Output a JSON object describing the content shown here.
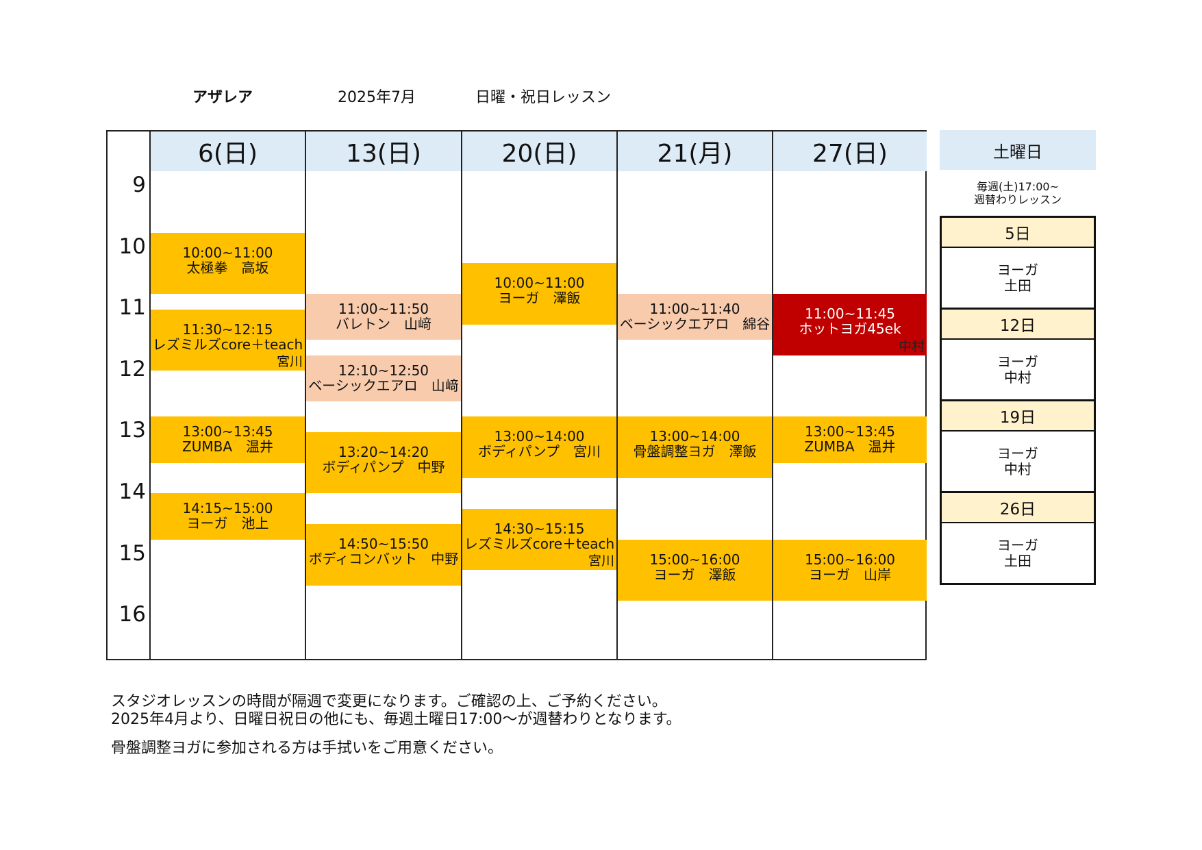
{
  "header": {
    "studio": "アザレア",
    "month": "2025年7月",
    "subtitle": "日曜・祝日レッスン"
  },
  "colors": {
    "regular": "#FFC000",
    "beginner": "#F8CBAD",
    "hot": "#C00000",
    "header_fill": "#DDEBF7",
    "saturday_date_fill": "#FFF2CC"
  },
  "hours": [
    "9",
    "10",
    "11",
    "12",
    "13",
    "14",
    "15",
    "16"
  ],
  "days": [
    {
      "label": "6(日)",
      "events": [
        {
          "time": "10:00~11:00",
          "name": "太極拳　高坂",
          "color": "regular"
        },
        {
          "time": "11:30~12:15",
          "name": "レズミルズcore＋teach",
          "instructor": "宮川",
          "color": "regular"
        },
        {
          "time": "13:00~13:45",
          "name": "ZUMBA　温井",
          "color": "regular"
        },
        {
          "time": "14:15~15:00",
          "name": "ヨーガ　池上",
          "color": "regular"
        }
      ]
    },
    {
      "label": "13(日)",
      "events": [
        {
          "time": "11:00~11:50",
          "name": "バレトン　山﨑",
          "color": "beginner"
        },
        {
          "time": "12:10~12:50",
          "name": "ベーシックエアロ　山﨑",
          "color": "beginner"
        },
        {
          "time": "13:20~14:20",
          "name": "ボディパンプ　中野",
          "color": "regular"
        },
        {
          "time": "14:50~15:50",
          "name": "ボディコンバット　中野",
          "color": "regular"
        }
      ]
    },
    {
      "label": "20(日)",
      "events": [
        {
          "time": "10:00~11:00",
          "name": "ヨーガ　澤飯",
          "color": "regular"
        },
        {
          "time": "13:00~14:00",
          "name": "ボディパンプ　宮川",
          "color": "regular"
        },
        {
          "time": "14:30~15:15",
          "name": "レズミルズcore＋teach",
          "instructor": "宮川",
          "color": "regular"
        }
      ]
    },
    {
      "label": "21(月)",
      "events": [
        {
          "time": "11:00~11:40",
          "name": "ベーシックエアロ　綿谷",
          "color": "beginner"
        },
        {
          "time": "13:00~14:00",
          "name": "骨盤調整ヨガ　澤飯",
          "color": "regular"
        },
        {
          "time": "15:00~16:00",
          "name": "ヨーガ　澤飯",
          "color": "regular"
        }
      ]
    },
    {
      "label": "27(日)",
      "events": [
        {
          "time": "11:00~11:45",
          "name": "ホットヨガ45ek",
          "instructor": "中村",
          "color": "hot"
        },
        {
          "time": "13:00~13:45",
          "name": "ZUMBA　温井",
          "color": "regular"
        },
        {
          "time": "15:00~16:00",
          "name": "ヨーガ　山岸",
          "color": "regular"
        }
      ]
    }
  ],
  "saturday": {
    "title": "土曜日",
    "note_line1": "毎週(土)17:00~",
    "note_line2": "週替わりレッスン",
    "entries": [
      {
        "date": "5日",
        "lesson": "ヨーガ",
        "instructor": "土田"
      },
      {
        "date": "12日",
        "lesson": "ヨーガ",
        "instructor": "中村"
      },
      {
        "date": "19日",
        "lesson": "ヨーガ",
        "instructor": "中村"
      },
      {
        "date": "26日",
        "lesson": "ヨーガ",
        "instructor": "土田"
      }
    ]
  },
  "footer": [
    "スタジオレッスンの時間が隔週で変更になります。ご確認の上、ご予約ください。",
    "2025年4月より、日曜日祝日の他にも、毎週土曜日17:00～が週替わりとなります。",
    "骨盤調整ヨガに参加される方は手拭いをご用意ください。"
  ]
}
